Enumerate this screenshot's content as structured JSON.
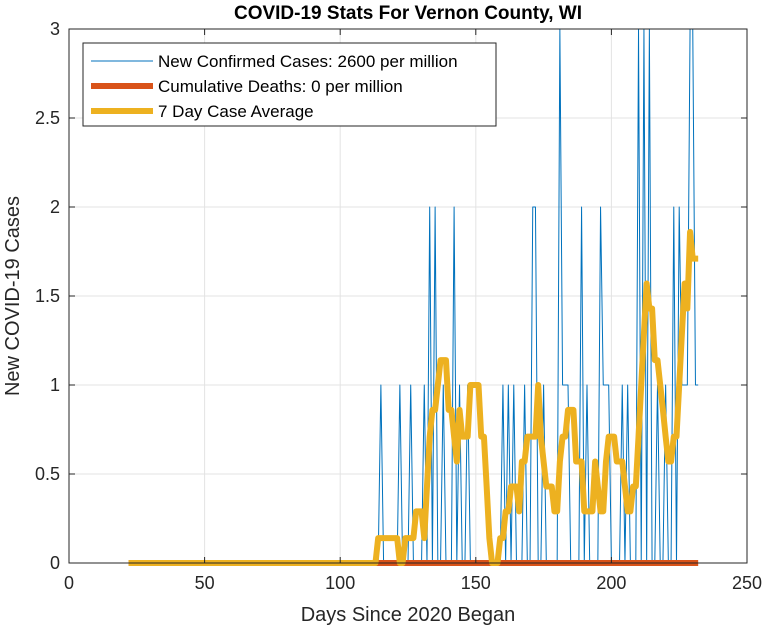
{
  "chart_data": {
    "type": "line",
    "title": "COVID-19 Stats For Vernon County, WI",
    "xlabel": "Days Since 2020 Began",
    "ylabel": "New COVID-19 Cases",
    "xlim": [
      0,
      250
    ],
    "ylim": [
      0,
      3
    ],
    "xticks": [
      0,
      50,
      100,
      150,
      200,
      250
    ],
    "yticks": [
      0,
      0.5,
      1,
      1.5,
      2,
      2.5,
      3
    ],
    "xtick_labels": [
      "0",
      "50",
      "100",
      "150",
      "200",
      "250"
    ],
    "ytick_labels": [
      "0",
      "0.5",
      "1",
      "1.5",
      "2",
      "2.5",
      "3"
    ],
    "grid": true,
    "legend_position": "top-left",
    "series": [
      {
        "name": "New Confirmed Cases: 2600 per million",
        "color": "#0072BD",
        "style": "thin",
        "x": [
          22,
          113,
          114,
          115,
          116,
          117,
          121,
          122,
          123,
          124,
          125,
          126,
          127,
          128,
          129,
          130,
          131,
          132,
          133,
          134,
          135,
          136,
          137,
          138,
          139,
          140,
          141,
          142,
          143,
          144,
          145,
          146,
          147,
          148,
          149,
          150,
          151,
          152,
          153,
          154,
          155,
          156,
          157,
          158,
          159,
          160,
          161,
          162,
          163,
          164,
          165,
          166,
          167,
          168,
          169,
          170,
          171,
          172,
          173,
          174,
          175,
          176,
          177,
          178,
          179,
          180,
          181,
          182,
          183,
          184,
          185,
          186,
          187,
          188,
          189,
          190,
          191,
          192,
          193,
          194,
          195,
          196,
          197,
          198,
          199,
          200,
          201,
          202,
          203,
          204,
          205,
          206,
          207,
          208,
          209,
          210,
          211,
          212,
          213,
          214,
          215,
          216,
          217,
          218,
          219,
          220,
          221,
          222,
          223,
          224,
          225,
          226,
          227,
          228,
          229,
          230,
          231,
          232
        ],
        "values": [
          0,
          0,
          0,
          1,
          0,
          0,
          0,
          1,
          0,
          0,
          0,
          1,
          0,
          0,
          0,
          0,
          1,
          0,
          2,
          0,
          2,
          0,
          0,
          1,
          0,
          0,
          0,
          2,
          0,
          1,
          0,
          0,
          1,
          0,
          0,
          0,
          0,
          0,
          0,
          0,
          0,
          0,
          0,
          0,
          0,
          1,
          0,
          1,
          0,
          1,
          0,
          0,
          0,
          1,
          0,
          0,
          2,
          2,
          0,
          0,
          1,
          0,
          0,
          0,
          0,
          0,
          3,
          1,
          1,
          1,
          0,
          0,
          0,
          0,
          2,
          0,
          1,
          0,
          0,
          0,
          0,
          2,
          1,
          1,
          1,
          0,
          0,
          0,
          0,
          1,
          0,
          1,
          0,
          0,
          0,
          3,
          0,
          3,
          0,
          3,
          0,
          0,
          1,
          0,
          0,
          1,
          0,
          0,
          2,
          0,
          2,
          1,
          1,
          1,
          3,
          3,
          1,
          1
        ]
      },
      {
        "name": "Cumulative Deaths: 0 per million",
        "color": "#D95319",
        "style": "thick",
        "x": [
          22,
          232
        ],
        "values": [
          0,
          0
        ]
      },
      {
        "name": "7 Day Case Average",
        "color": "#EDB120",
        "style": "thick",
        "x": [
          22,
          113,
          114,
          120,
          121,
          122,
          123,
          124,
          125,
          126,
          127,
          128,
          129,
          130,
          131,
          132,
          133,
          134,
          135,
          136,
          137,
          138,
          139,
          140,
          141,
          142,
          143,
          144,
          145,
          146,
          147,
          148,
          149,
          150,
          151,
          152,
          153,
          154,
          155,
          156,
          157,
          158,
          159,
          160,
          161,
          162,
          163,
          164,
          165,
          166,
          167,
          168,
          169,
          170,
          171,
          172,
          173,
          174,
          175,
          176,
          177,
          178,
          179,
          180,
          181,
          182,
          183,
          184,
          185,
          186,
          187,
          188,
          189,
          190,
          191,
          192,
          193,
          194,
          195,
          196,
          197,
          198,
          199,
          200,
          201,
          202,
          203,
          204,
          205,
          206,
          207,
          208,
          209,
          210,
          211,
          212,
          213,
          214,
          215,
          216,
          217,
          218,
          219,
          220,
          221,
          222,
          223,
          224,
          225,
          226,
          227,
          228,
          229,
          230,
          231,
          232
        ],
        "values": [
          0,
          0,
          0.14,
          0.14,
          0.14,
          0,
          0,
          0.14,
          0.14,
          0.14,
          0.14,
          0.29,
          0.29,
          0.29,
          0.14,
          0.43,
          0.71,
          0.86,
          0.86,
          1.0,
          1.14,
          1.14,
          1.14,
          0.86,
          0.86,
          0.71,
          0.57,
          0.86,
          0.71,
          0.71,
          0.71,
          1.0,
          1.0,
          1.0,
          1.0,
          0.71,
          0.71,
          0.43,
          0.14,
          0,
          0,
          0,
          0.14,
          0.14,
          0.29,
          0.29,
          0.43,
          0.43,
          0.43,
          0.29,
          0.57,
          0.57,
          0.71,
          0.71,
          0.71,
          0.71,
          1.0,
          0.71,
          0.57,
          0.43,
          0.43,
          0.43,
          0.29,
          0.29,
          0.57,
          0.71,
          0.71,
          0.86,
          0.86,
          0.86,
          0.57,
          0.57,
          0.57,
          0.29,
          0.29,
          0.29,
          0.29,
          0.57,
          0.43,
          0.29,
          0.29,
          0.57,
          0.71,
          0.71,
          0.71,
          0.57,
          0.57,
          0.57,
          0.43,
          0.29,
          0.29,
          0.43,
          0.43,
          0.71,
          1.0,
          1.29,
          1.57,
          1.43,
          1.43,
          1.14,
          1.14,
          1.0,
          0.86,
          0.71,
          0.57,
          0.57,
          0.71,
          0.71,
          1.0,
          1.29,
          1.57,
          1.43,
          1.86,
          1.71,
          1.71,
          1.71
        ]
      }
    ]
  }
}
